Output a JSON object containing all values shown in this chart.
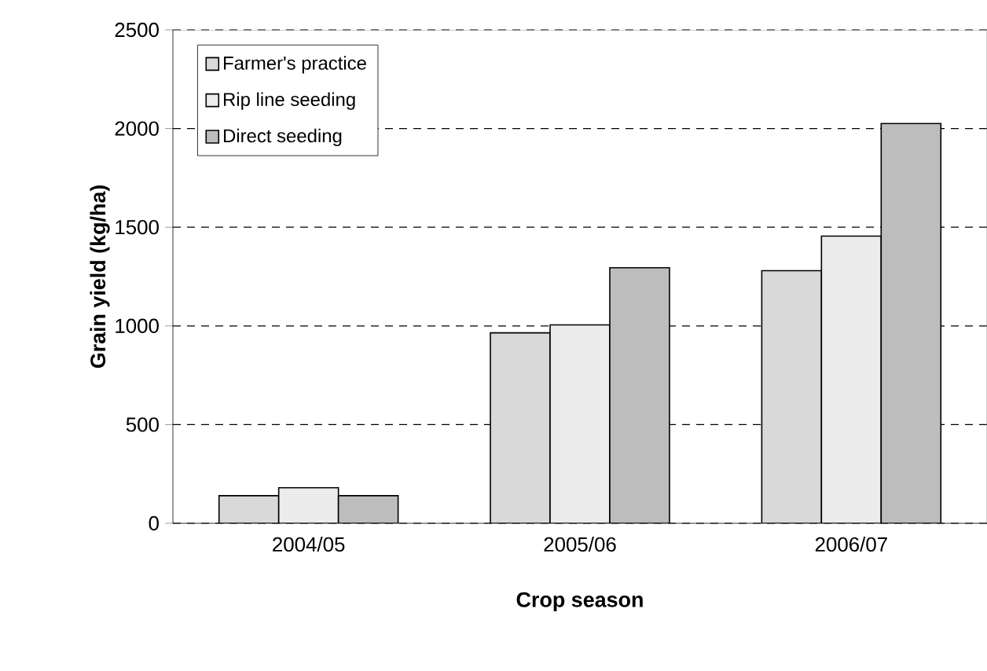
{
  "chart_data": {
    "type": "bar",
    "xlabel": "Crop season",
    "ylabel": "Grain yield (kg/ha)",
    "categories": [
      "2004/05",
      "2005/06",
      "2006/07"
    ],
    "series": [
      {
        "name": "Farmer's practice",
        "color": "#d9d9d9",
        "values": [
          140,
          965,
          1280
        ]
      },
      {
        "name": "Rip line seeding",
        "color": "#ececec",
        "values": [
          180,
          1005,
          1455
        ]
      },
      {
        "name": "Direct seeding",
        "color": "#bdbdbd",
        "values": [
          140,
          1295,
          2025
        ]
      }
    ],
    "ylim": [
      0,
      2500
    ],
    "yticks": [
      0,
      500,
      1000,
      1500,
      2000,
      2500
    ],
    "grid": "y",
    "legend": "top left"
  }
}
